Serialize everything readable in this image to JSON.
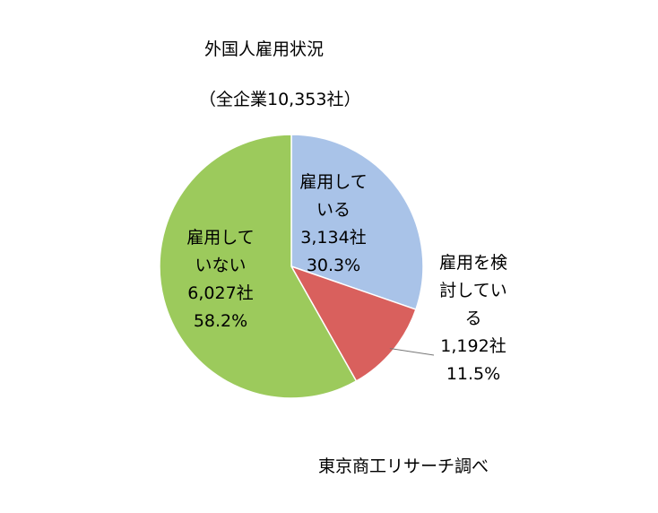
{
  "chart_data": {
    "type": "pie",
    "title": "外国人雇用状況",
    "subtitle": "（全企業10,353社）",
    "source": "東京商工リサーチ調べ",
    "categories": [
      "雇用している",
      "雇用を検討している",
      "雇用していない"
    ],
    "values": [
      30.3,
      11.5,
      58.2
    ],
    "value_labels": [
      "30.3%",
      "11.5%",
      "58.2%"
    ],
    "counts": [
      3134,
      1192,
      6027
    ],
    "count_labels": [
      "3,134社",
      "1,192社",
      "6,027社"
    ],
    "colors": [
      "#a9c3e8",
      "#d9605d",
      "#9cca5c"
    ]
  }
}
